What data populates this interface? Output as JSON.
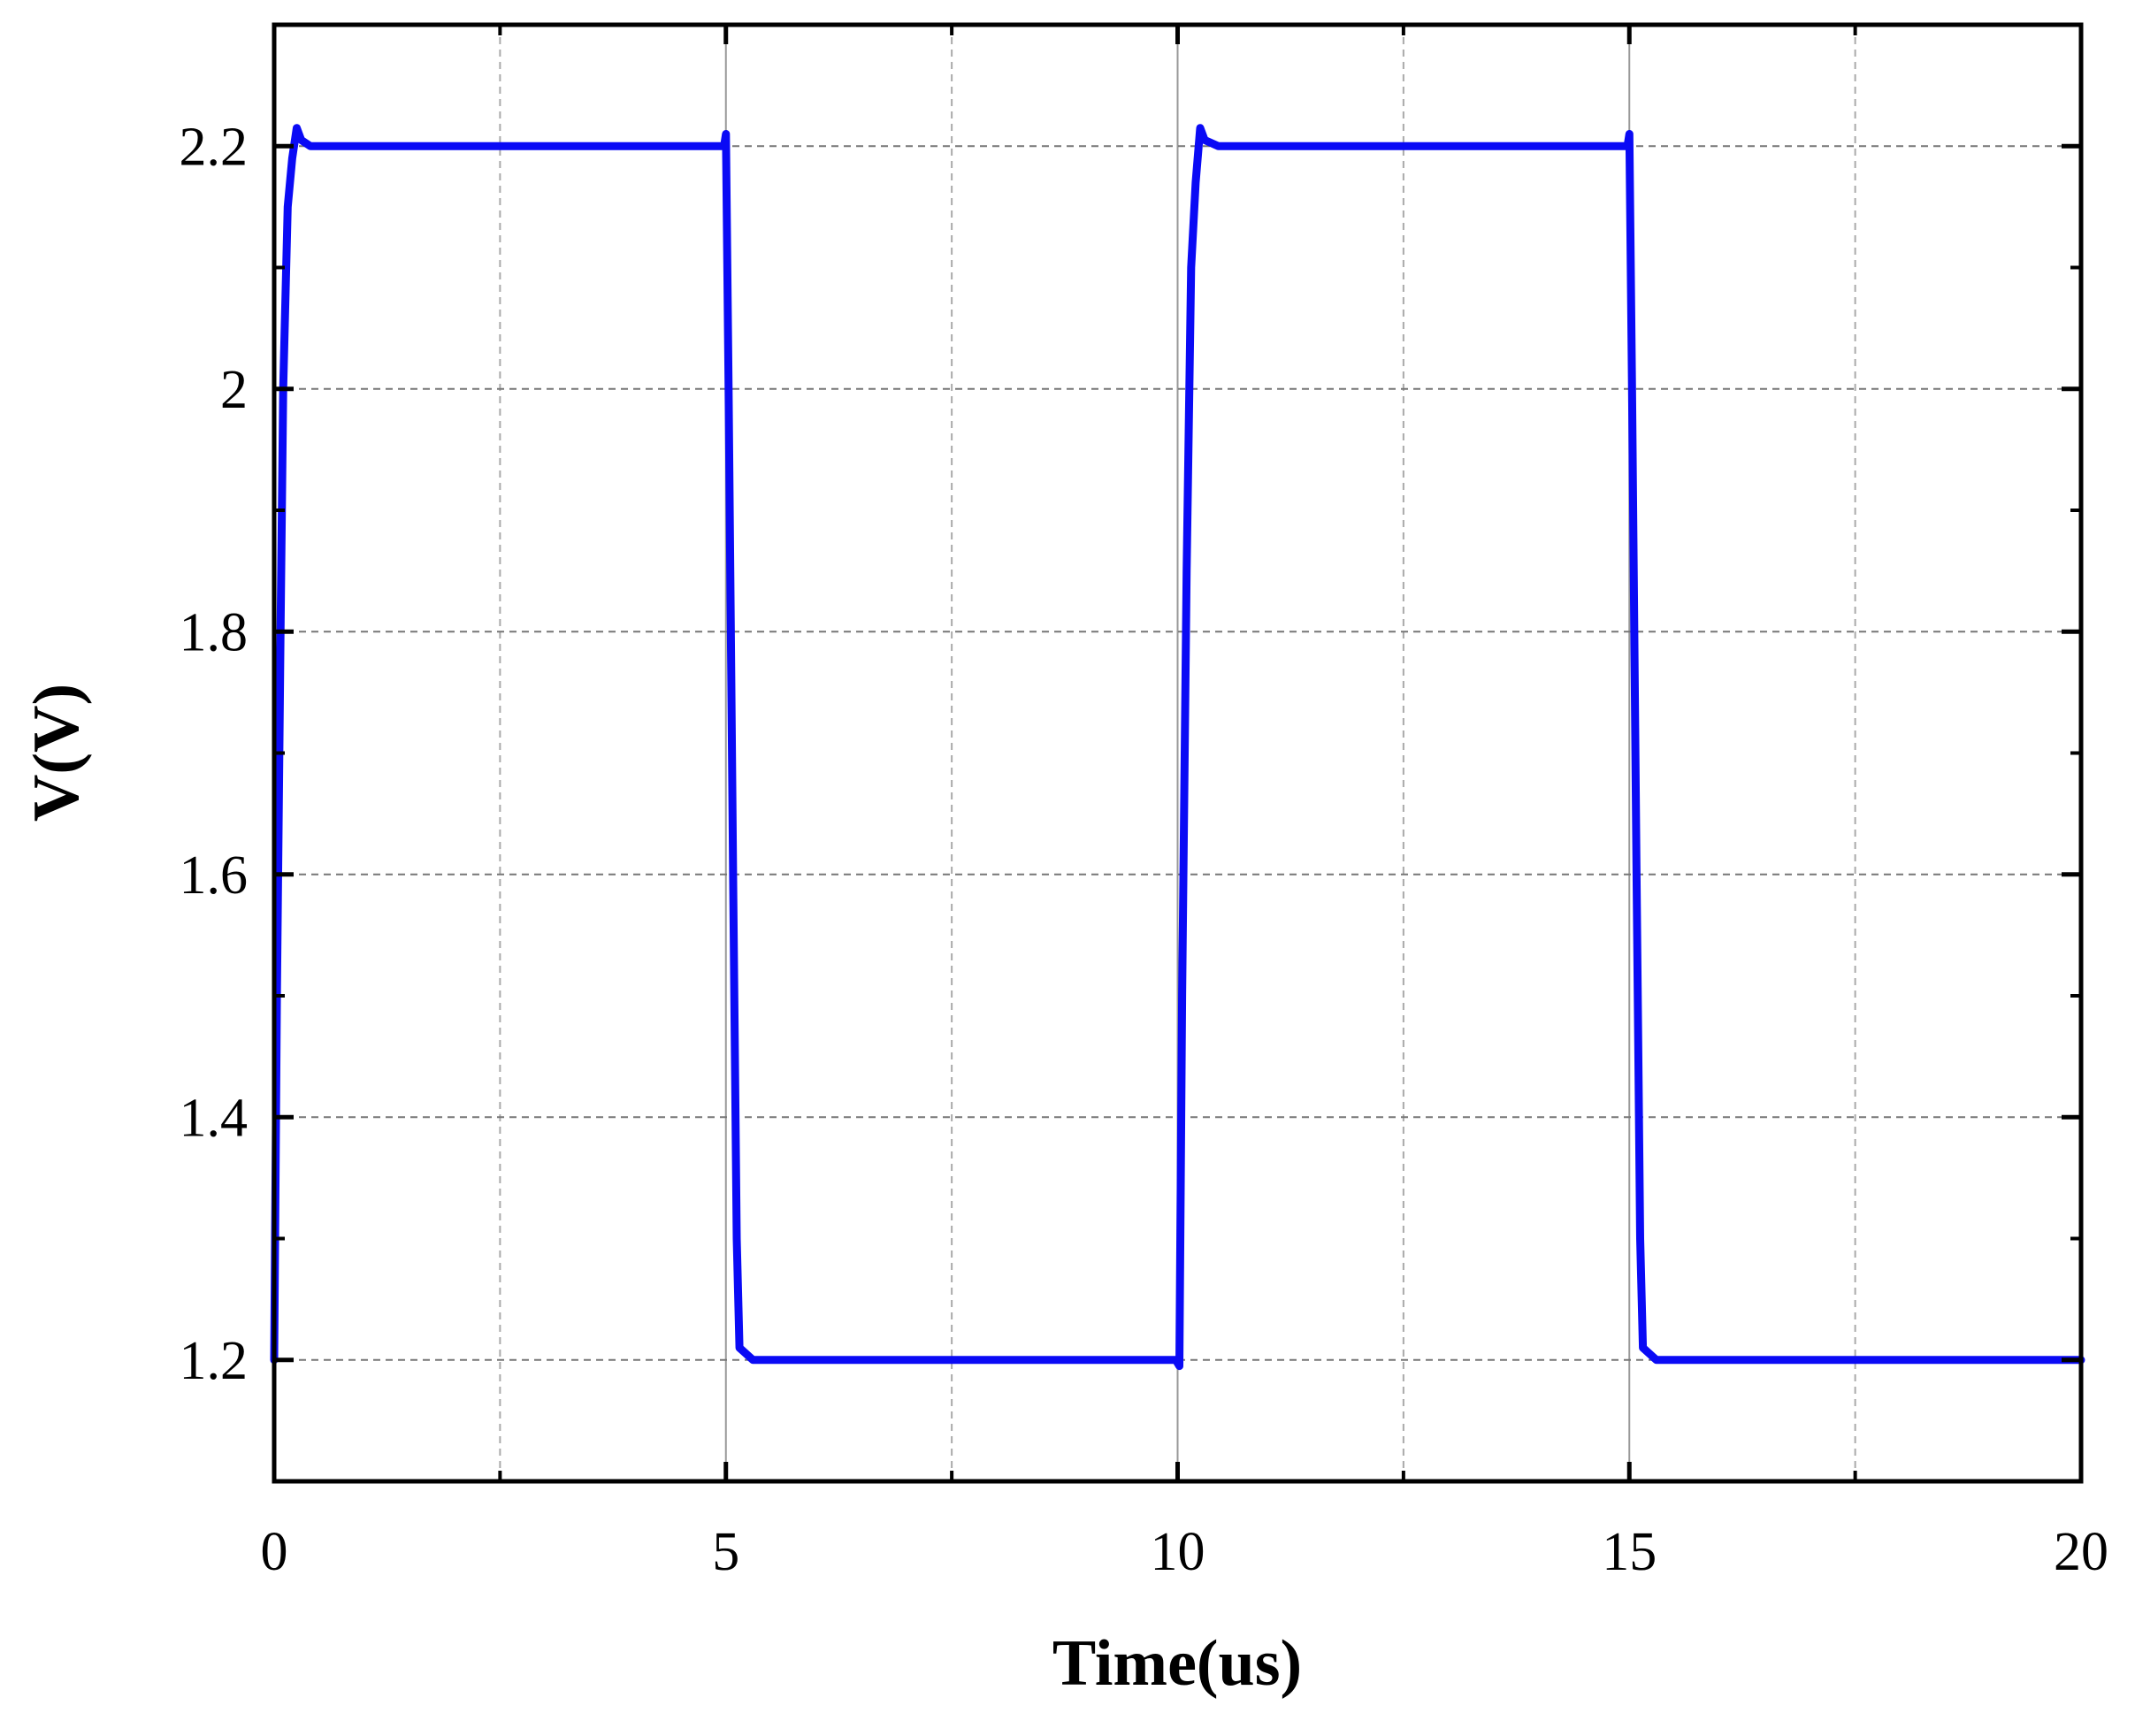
{
  "chart_data": {
    "type": "line",
    "x_label": "Time(us)",
    "y_label": "V(V)",
    "xlim": [
      0,
      20
    ],
    "ylim": [
      1.1,
      2.3
    ],
    "xticks": [
      0,
      5,
      10,
      15,
      20
    ],
    "yticks": [
      1.2,
      1.4,
      1.6,
      1.8,
      2.0,
      2.2
    ],
    "xminor": [
      2.5,
      7.5,
      12.5,
      17.5
    ],
    "yminor": [
      1.3,
      1.5,
      1.7,
      1.9,
      2.1
    ],
    "grid": true,
    "x": [
      0,
      0.03,
      0.07,
      0.1,
      0.15,
      0.2,
      0.25,
      0.3,
      0.4,
      1,
      4.98,
      5.0,
      5.03,
      5.08,
      5.12,
      5.15,
      5.3,
      9.98,
      10.02,
      10.05,
      10.1,
      10.15,
      10.2,
      10.25,
      10.3,
      10.45,
      14.98,
      15.0,
      15.03,
      15.08,
      15.12,
      15.15,
      15.3,
      20
    ],
    "series": [
      {
        "color": "#0a0af5",
        "values": [
          1.2,
          1.5,
          1.8,
          2.0,
          2.15,
          2.19,
          2.215,
          2.205,
          2.2,
          2.2,
          2.2,
          2.21,
          2.0,
          1.6,
          1.3,
          1.21,
          1.2,
          1.2,
          1.195,
          1.5,
          1.85,
          2.1,
          2.17,
          2.215,
          2.205,
          2.2,
          2.2,
          2.21,
          2.0,
          1.6,
          1.3,
          1.21,
          1.2,
          1.2
        ]
      }
    ]
  }
}
